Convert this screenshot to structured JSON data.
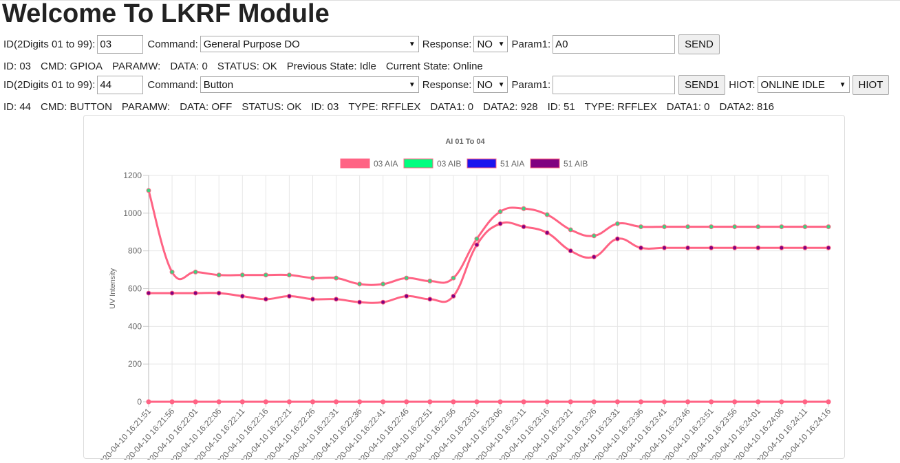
{
  "page": {
    "title": "Welcome To LKRF Module"
  },
  "form1": {
    "id_label": "ID(2Digits 01 to 99):",
    "id_value": "03",
    "command_label": "Command:",
    "command_value": "General Purpose DO",
    "response_label": "Response:",
    "response_value": "NO",
    "param1_label": "Param1:",
    "param1_value": "A0",
    "send_label": "SEND"
  },
  "status1": [
    "ID: 03",
    "CMD: GPIOA",
    "PARAMW:",
    "DATA: 0",
    "STATUS: OK",
    "Previous State: Idle",
    "Current State: Online"
  ],
  "form2": {
    "id_label": "ID(2Digits 01 to 99):",
    "id_value": "44",
    "command_label": "Command:",
    "command_value": "Button",
    "response_label": "Response:",
    "response_value": "NO",
    "param1_label": "Param1:",
    "param1_value": "",
    "send_label": "SEND1",
    "hiot_label": "HIOT:",
    "hiot_value": "ONLINE IDLE",
    "hiot_button": "HIOT"
  },
  "status2": [
    "ID: 44",
    "CMD: BUTTON",
    "PARAMW:",
    "DATA: OFF",
    "STATUS: OK",
    "ID: 03",
    "TYPE: RFFLEX",
    "DATA1: 0",
    "DATA2: 928",
    "ID: 51",
    "TYPE: RFFLEX",
    "DATA1: 0",
    "DATA2: 816"
  ],
  "chart_data": {
    "type": "line",
    "title": "AI 01 To 04",
    "ylabel": "UV Intensity",
    "ylim": [
      0,
      1200
    ],
    "yticks": [
      0,
      200,
      400,
      600,
      800,
      1000,
      1200
    ],
    "grid": true,
    "legend_position": "top",
    "categories": [
      "2020-04-10 16:21:51",
      "2020-04-10 16:21:56",
      "2020-04-10 16:22:01",
      "2020-04-10 16:22:06",
      "2020-04-10 16:22:11",
      "2020-04-10 16:22:16",
      "2020-04-10 16:22:21",
      "2020-04-10 16:22:26",
      "2020-04-10 16:22:31",
      "2020-04-10 16:22:36",
      "2020-04-10 16:22:41",
      "2020-04-10 16:22:46",
      "2020-04-10 16:22:51",
      "2020-04-10 16:22:56",
      "2020-04-10 16:23:01",
      "2020-04-10 16:23:06",
      "2020-04-10 16:23:11",
      "2020-04-10 16:23:16",
      "2020-04-10 16:23:21",
      "2020-04-10 16:23:26",
      "2020-04-10 16:23:31",
      "2020-04-10 16:23:36",
      "2020-04-10 16:23:41",
      "2020-04-10 16:23:46",
      "2020-04-10 16:23:51",
      "2020-04-10 16:23:56",
      "2020-04-10 16:24:01",
      "2020-04-10 16:24:06",
      "2020-04-10 16:24:11",
      "2020-04-10 16:24:16"
    ],
    "series": [
      {
        "name": "03 AIA",
        "fill": "#ff6384",
        "border": "#ff6384",
        "point": "#ff6384",
        "values": [
          0,
          0,
          0,
          0,
          0,
          0,
          0,
          0,
          0,
          0,
          0,
          0,
          0,
          0,
          0,
          0,
          0,
          0,
          0,
          0,
          0,
          0,
          0,
          0,
          0,
          0,
          0,
          0,
          0,
          0
        ]
      },
      {
        "name": "03 AIB",
        "fill": "#00ff80",
        "border": "#ff6384",
        "point": "#3cd17e",
        "values": [
          1120,
          688,
          688,
          672,
          672,
          672,
          672,
          656,
          656,
          624,
          624,
          656,
          640,
          656,
          864,
          1008,
          1024,
          992,
          912,
          880,
          944,
          928,
          928,
          928,
          928,
          928,
          928,
          928,
          928,
          928
        ]
      },
      {
        "name": "51 AIA",
        "fill": "#1a14ee",
        "border": "#ff6384",
        "point": "#ff6384",
        "values": [
          0,
          0,
          0,
          0,
          0,
          0,
          0,
          0,
          0,
          0,
          0,
          0,
          0,
          0,
          0,
          0,
          0,
          0,
          0,
          0,
          0,
          0,
          0,
          0,
          0,
          0,
          0,
          0,
          0,
          0
        ]
      },
      {
        "name": "51 AIB",
        "fill": "#800080",
        "border": "#ff6384",
        "point": "#800080",
        "values": [
          576,
          576,
          576,
          576,
          560,
          544,
          560,
          544,
          544,
          528,
          528,
          560,
          544,
          560,
          832,
          944,
          928,
          896,
          800,
          768,
          864,
          816,
          816,
          816,
          816,
          816,
          816,
          816,
          816,
          816
        ]
      }
    ]
  }
}
